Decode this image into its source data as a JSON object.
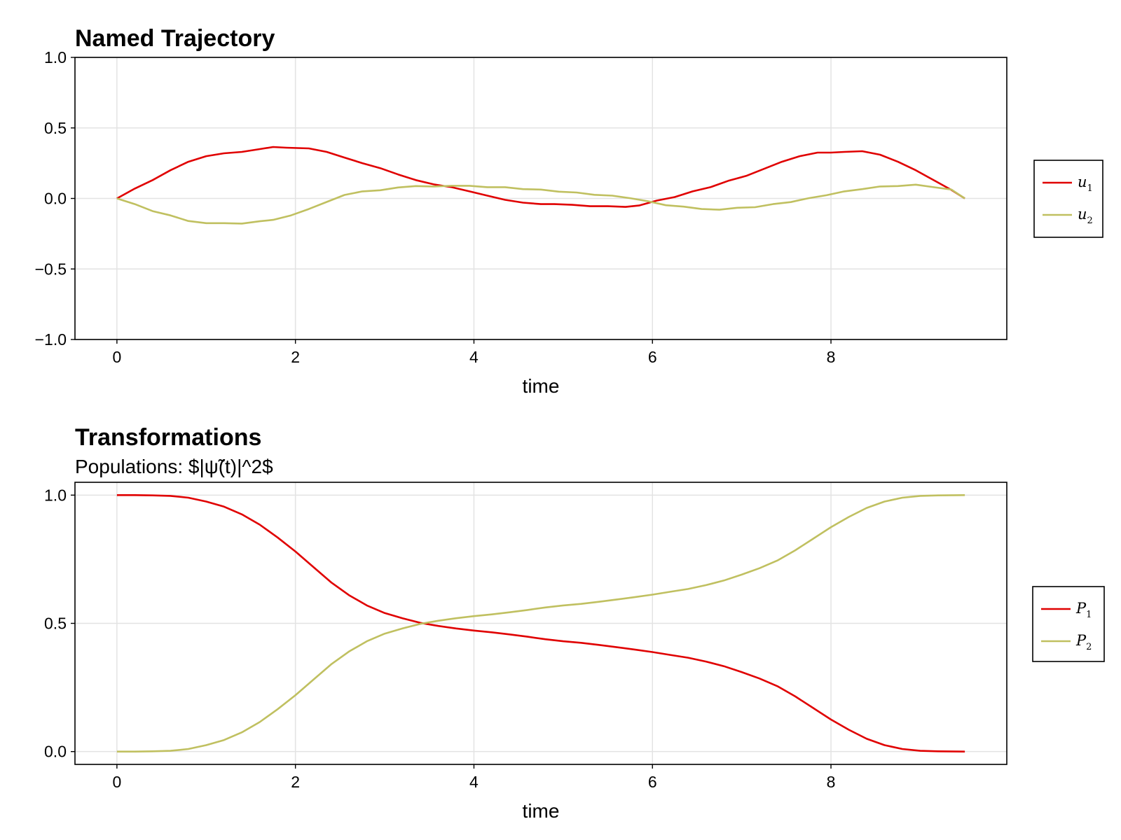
{
  "chart_data": [
    {
      "type": "line",
      "title": "Named Trajectory",
      "subtitle": "",
      "xlabel": "time",
      "ylabel": "",
      "xlim": [
        -0.47,
        9.97
      ],
      "ylim": [
        -1.0,
        1.0
      ],
      "xticks": [
        0,
        2,
        4,
        6,
        8
      ],
      "xtick_labels": [
        "0",
        "2",
        "4",
        "6",
        "8"
      ],
      "yticks": [
        1.0,
        0.5,
        0.0,
        -0.5,
        -1.0
      ],
      "ytick_labels": [
        "1.0",
        "0.5",
        "0.0",
        "−0.5",
        "−1.0"
      ],
      "grid": true,
      "legend_position": "right",
      "series": [
        {
          "name": "u",
          "name_sub": "1",
          "color": "#e00000",
          "x": [
            0,
            0.2,
            0.4,
            0.6,
            0.8,
            1.0,
            1.2,
            1.4,
            1.6,
            1.75,
            1.9,
            2.15,
            2.35,
            2.55,
            2.75,
            2.95,
            3.15,
            3.35,
            3.55,
            3.75,
            3.95,
            4.15,
            4.35,
            4.55,
            4.75,
            4.9,
            5.1,
            5.3,
            5.5,
            5.7,
            5.85,
            6.05,
            6.25,
            6.45,
            6.65,
            6.85,
            7.05,
            7.25,
            7.45,
            7.65,
            7.85,
            8.0,
            8.15,
            8.35,
            8.55,
            8.75,
            8.95,
            9.15,
            9.35,
            9.5
          ],
          "y": [
            0.0,
            0.07,
            0.13,
            0.2,
            0.26,
            0.3,
            0.32,
            0.33,
            0.35,
            0.365,
            0.36,
            0.355,
            0.33,
            0.29,
            0.25,
            0.215,
            0.17,
            0.13,
            0.1,
            0.08,
            0.05,
            0.02,
            -0.01,
            -0.03,
            -0.04,
            -0.04,
            -0.045,
            -0.055,
            -0.055,
            -0.06,
            -0.05,
            -0.015,
            0.01,
            0.05,
            0.08,
            0.125,
            0.16,
            0.21,
            0.26,
            0.3,
            0.325,
            0.325,
            0.33,
            0.335,
            0.31,
            0.26,
            0.2,
            0.13,
            0.06,
            0.0
          ]
        },
        {
          "name": "u",
          "name_sub": "2",
          "color": "#c0c060",
          "x": [
            0,
            0.2,
            0.4,
            0.6,
            0.8,
            1.0,
            1.2,
            1.4,
            1.6,
            1.75,
            1.95,
            2.15,
            2.35,
            2.55,
            2.75,
            2.95,
            3.15,
            3.35,
            3.55,
            3.75,
            3.95,
            4.15,
            4.35,
            4.55,
            4.75,
            4.95,
            5.15,
            5.35,
            5.55,
            5.75,
            5.95,
            6.15,
            6.35,
            6.55,
            6.75,
            6.95,
            7.15,
            7.35,
            7.55,
            7.75,
            7.95,
            8.15,
            8.35,
            8.55,
            8.75,
            8.95,
            9.15,
            9.35,
            9.5
          ],
          "y": [
            0.0,
            -0.04,
            -0.09,
            -0.12,
            -0.16,
            -0.175,
            -0.175,
            -0.178,
            -0.162,
            -0.152,
            -0.12,
            -0.075,
            -0.025,
            0.025,
            0.05,
            0.058,
            0.078,
            0.088,
            0.085,
            0.09,
            0.09,
            0.08,
            0.08,
            0.066,
            0.063,
            0.048,
            0.042,
            0.026,
            0.02,
            0.002,
            -0.02,
            -0.048,
            -0.058,
            -0.075,
            -0.08,
            -0.066,
            -0.062,
            -0.04,
            -0.026,
            0.002,
            0.023,
            0.05,
            0.066,
            0.085,
            0.088,
            0.098,
            0.08,
            0.063,
            0.0
          ]
        }
      ]
    },
    {
      "type": "line",
      "title": "Transformations",
      "subtitle": "Populations: $|ψ̃(t)|^2$",
      "xlabel": "time",
      "ylabel": "",
      "xlim": [
        -0.47,
        9.97
      ],
      "ylim": [
        -0.05,
        1.05
      ],
      "xticks": [
        0,
        2,
        4,
        6,
        8
      ],
      "xtick_labels": [
        "0",
        "2",
        "4",
        "6",
        "8"
      ],
      "yticks": [
        1.0,
        0.5,
        0.0
      ],
      "ytick_labels": [
        "1.0",
        "0.5",
        "0.0"
      ],
      "grid": true,
      "legend_position": "right",
      "series": [
        {
          "name": "P",
          "name_sub": "1",
          "color": "#e00000",
          "x": [
            0,
            0.2,
            0.4,
            0.6,
            0.8,
            1.0,
            1.2,
            1.4,
            1.6,
            1.8,
            2.0,
            2.2,
            2.4,
            2.6,
            2.8,
            3.0,
            3.2,
            3.4,
            3.6,
            3.8,
            4.0,
            4.2,
            4.4,
            4.6,
            4.8,
            5.0,
            5.2,
            5.4,
            5.6,
            5.8,
            6.0,
            6.2,
            6.4,
            6.6,
            6.8,
            7.0,
            7.2,
            7.4,
            7.6,
            7.8,
            8.0,
            8.2,
            8.4,
            8.6,
            8.8,
            9.0,
            9.2,
            9.5
          ],
          "y": [
            1.0,
            1.0,
            0.999,
            0.997,
            0.99,
            0.975,
            0.955,
            0.925,
            0.885,
            0.835,
            0.78,
            0.72,
            0.66,
            0.61,
            0.57,
            0.54,
            0.52,
            0.502,
            0.49,
            0.48,
            0.472,
            0.465,
            0.457,
            0.448,
            0.438,
            0.43,
            0.424,
            0.416,
            0.407,
            0.398,
            0.388,
            0.377,
            0.366,
            0.351,
            0.333,
            0.31,
            0.285,
            0.255,
            0.215,
            0.17,
            0.125,
            0.085,
            0.05,
            0.025,
            0.01,
            0.003,
            0.001,
            0.0
          ]
        },
        {
          "name": "P",
          "name_sub": "2",
          "color": "#c0c060",
          "x": [
            0,
            0.2,
            0.4,
            0.6,
            0.8,
            1.0,
            1.2,
            1.4,
            1.6,
            1.8,
            2.0,
            2.2,
            2.4,
            2.6,
            2.8,
            3.0,
            3.2,
            3.4,
            3.6,
            3.8,
            4.0,
            4.2,
            4.4,
            4.6,
            4.8,
            5.0,
            5.2,
            5.4,
            5.6,
            5.8,
            6.0,
            6.2,
            6.4,
            6.6,
            6.8,
            7.0,
            7.2,
            7.4,
            7.6,
            7.8,
            8.0,
            8.2,
            8.4,
            8.6,
            8.8,
            9.0,
            9.2,
            9.5
          ],
          "y": [
            0.0,
            0.0,
            0.001,
            0.003,
            0.01,
            0.025,
            0.045,
            0.075,
            0.115,
            0.165,
            0.22,
            0.28,
            0.34,
            0.39,
            0.43,
            0.46,
            0.48,
            0.498,
            0.51,
            0.52,
            0.528,
            0.535,
            0.543,
            0.552,
            0.562,
            0.57,
            0.576,
            0.584,
            0.593,
            0.602,
            0.612,
            0.623,
            0.634,
            0.649,
            0.667,
            0.69,
            0.715,
            0.745,
            0.785,
            0.83,
            0.875,
            0.915,
            0.95,
            0.975,
            0.99,
            0.997,
            0.999,
            1.0
          ]
        }
      ]
    }
  ]
}
